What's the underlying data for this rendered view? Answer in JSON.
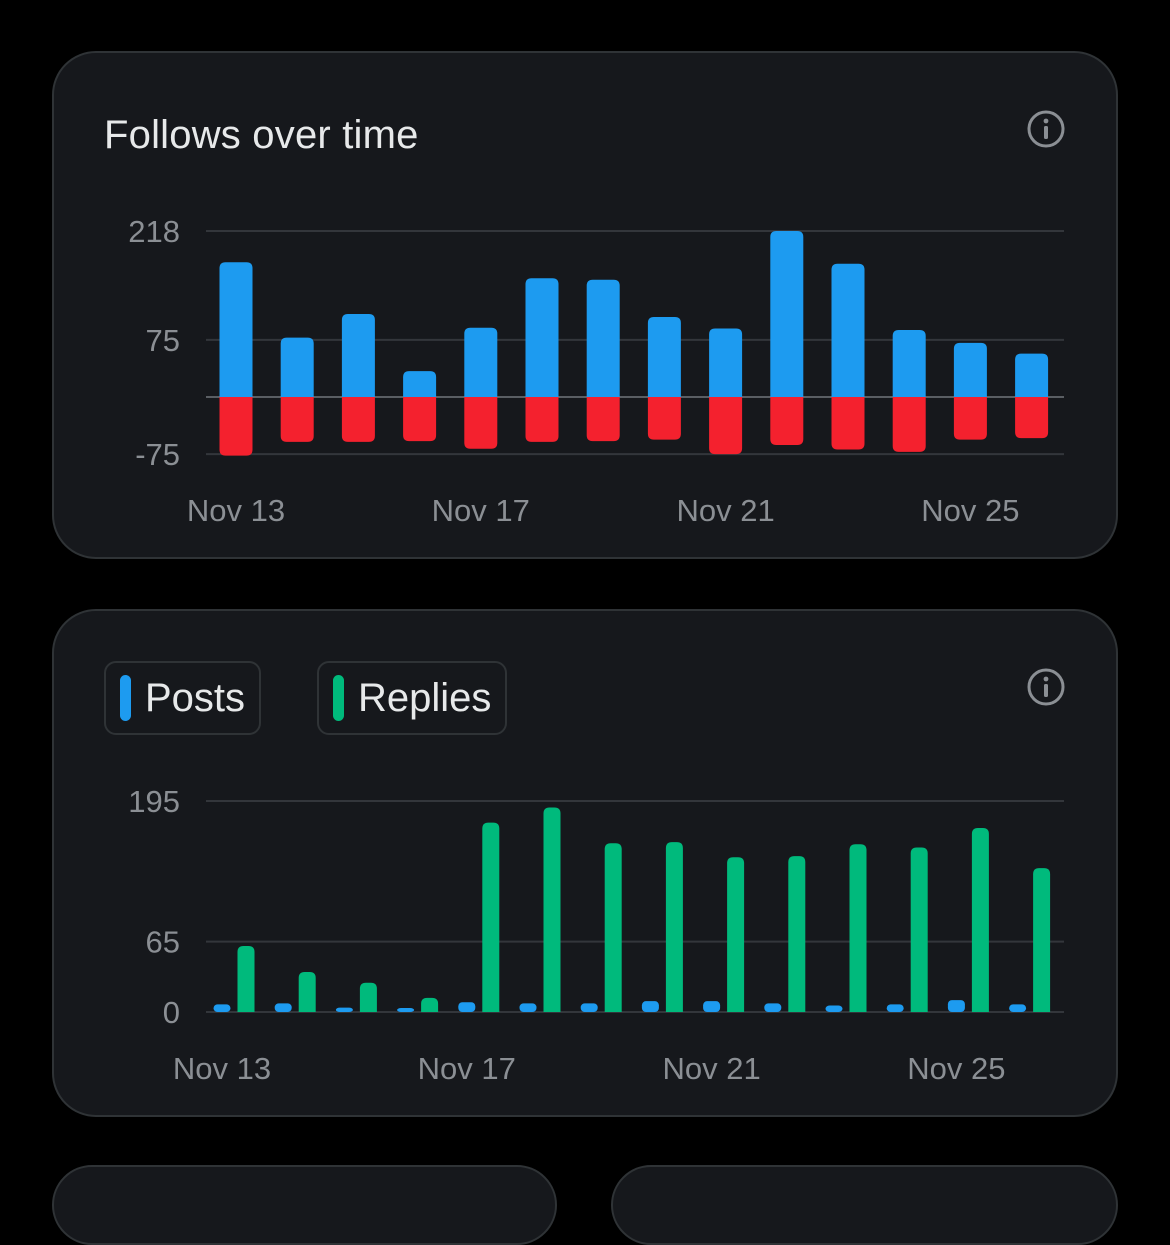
{
  "colors": {
    "background": "#000000",
    "card": "#16181c",
    "grid": "#33363b",
    "axis_text": "#8b8f94",
    "follows": "#1d9bf0",
    "unfollows": "#f4212e",
    "posts": "#1d9bf0",
    "replies": "#00ba7c"
  },
  "icons": {
    "info": "info-circle-icon"
  },
  "follows_card": {
    "title": "Follows over time"
  },
  "posts_card": {
    "legend": [
      {
        "label": "Posts",
        "color": "#1d9bf0"
      },
      {
        "label": "Replies",
        "color": "#00ba7c"
      }
    ]
  },
  "chart_data": [
    {
      "type": "bar",
      "title": "Follows over time",
      "categories": [
        "Nov 13",
        "Nov 14",
        "Nov 15",
        "Nov 16",
        "Nov 17",
        "Nov 18",
        "Nov 19",
        "Nov 20",
        "Nov 21",
        "Nov 22",
        "Nov 23",
        "Nov 24",
        "Nov 25",
        "Nov 26"
      ],
      "x_tick_labels": [
        "Nov 13",
        "Nov 17",
        "Nov 21",
        "Nov 25"
      ],
      "y_ticks": [
        218,
        75,
        -75
      ],
      "ylim": [
        -75,
        218
      ],
      "grid": true,
      "series": [
        {
          "values": [
            177,
            78,
            109,
            34,
            91,
            156,
            154,
            105,
            90,
            218,
            175,
            88,
            71,
            57
          ]
        },
        {
          "values": [
            -77,
            -59,
            -59,
            -58,
            -68,
            -59,
            -58,
            -56,
            -75,
            -63,
            -69,
            -72,
            -56,
            -54
          ]
        }
      ]
    },
    {
      "type": "bar",
      "categories": [
        "Nov 13",
        "Nov 14",
        "Nov 15",
        "Nov 16",
        "Nov 17",
        "Nov 18",
        "Nov 19",
        "Nov 20",
        "Nov 21",
        "Nov 22",
        "Nov 23",
        "Nov 24",
        "Nov 25",
        "Nov 26"
      ],
      "x_tick_labels": [
        "Nov 13",
        "Nov 17",
        "Nov 21",
        "Nov 25"
      ],
      "y_ticks": [
        195,
        65,
        0
      ],
      "ylim": [
        0,
        195
      ],
      "grid": true,
      "legend": "top-left",
      "series": [
        {
          "name": "Posts",
          "values": [
            7,
            8,
            4,
            3,
            9,
            8,
            8,
            10,
            10,
            8,
            6,
            7,
            11,
            7
          ]
        },
        {
          "name": "Replies",
          "values": [
            61,
            37,
            27,
            13,
            175,
            189,
            156,
            157,
            143,
            144,
            155,
            152,
            170,
            133
          ]
        }
      ]
    }
  ]
}
